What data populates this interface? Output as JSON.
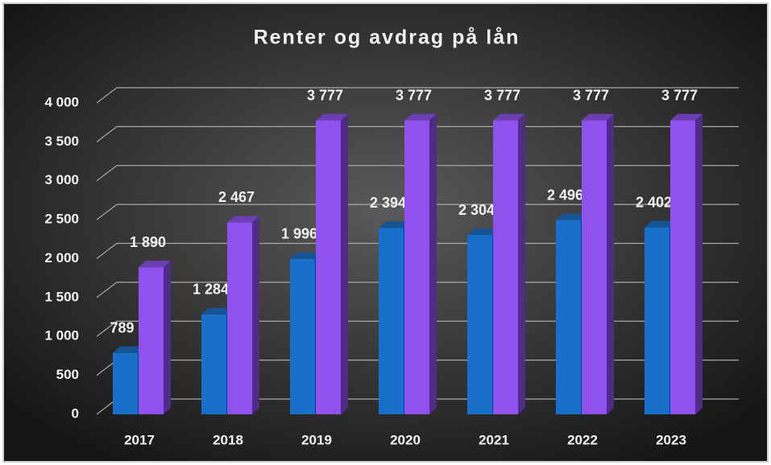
{
  "chart_data": {
    "type": "bar",
    "title": "Renter og avdrag på lån",
    "categories": [
      "2017",
      "2018",
      "2019",
      "2020",
      "2021",
      "2022",
      "2023"
    ],
    "series": [
      {
        "color": "#1a6fc8",
        "values": [
          789,
          1284,
          1996,
          2394,
          2304,
          2496,
          2402
        ],
        "value_labels": [
          "789",
          "1 284",
          "1 996",
          "2 394",
          "2 304",
          "2 496",
          "2 402"
        ]
      },
      {
        "color": "#8f52ec",
        "values": [
          1890,
          2467,
          3777,
          3777,
          3777,
          3777,
          3777
        ],
        "value_labels": [
          "1 890",
          "2 467",
          "3 777",
          "3 777",
          "3 777",
          "3 777",
          "3 777"
        ]
      }
    ],
    "ylim": [
      0,
      4000
    ],
    "yticks": [
      0,
      500,
      {
        "value": 1000,
        "label": "1 000"
      },
      {
        "value": 1500,
        "label": "1 500"
      },
      {
        "value": 2000,
        "label": "2 000"
      },
      {
        "value": 2500,
        "label": "2 500"
      },
      {
        "value": 3000,
        "label": "3 000"
      },
      {
        "value": 3500,
        "label": "3 500"
      },
      {
        "value": 4000,
        "label": "4 000"
      }
    ],
    "grid": true
  }
}
